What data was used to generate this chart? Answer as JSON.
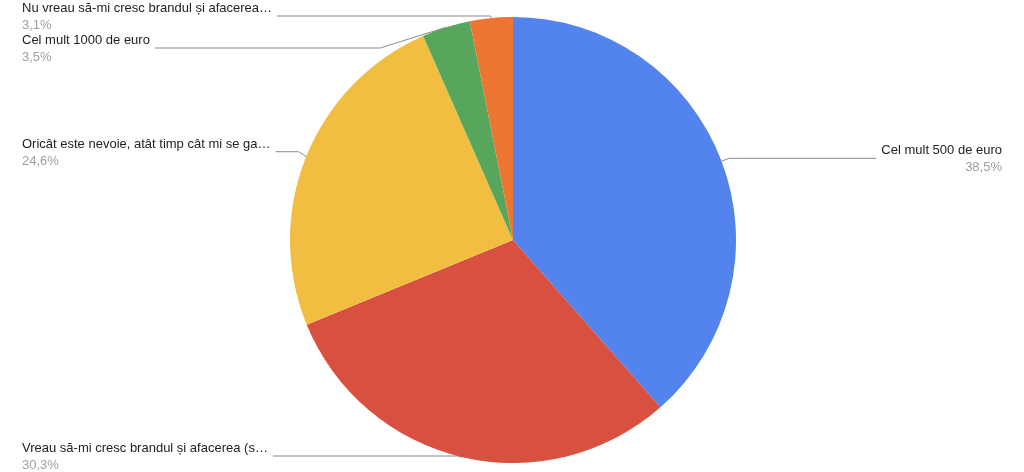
{
  "chart_data": {
    "type": "pie",
    "categories": [
      "Cel mult 500 de euro",
      "Vreau să-mi cresc brandul și afacerea (s…",
      "Oricât este nevoie, atât timp cât mi se ga…",
      "Cel mult 1000 de euro",
      "Nu vreau să-mi cresc brandul și afacerea…"
    ],
    "values": [
      38.5,
      30.3,
      24.6,
      3.5,
      3.1
    ],
    "colors": [
      "#5383ec",
      "#d85140",
      "#f1be42",
      "#58a65c",
      "#ec7532"
    ],
    "value_labels": [
      "38,5%",
      "30,3%",
      "24,6%",
      "3,5%",
      "3,1%"
    ]
  }
}
